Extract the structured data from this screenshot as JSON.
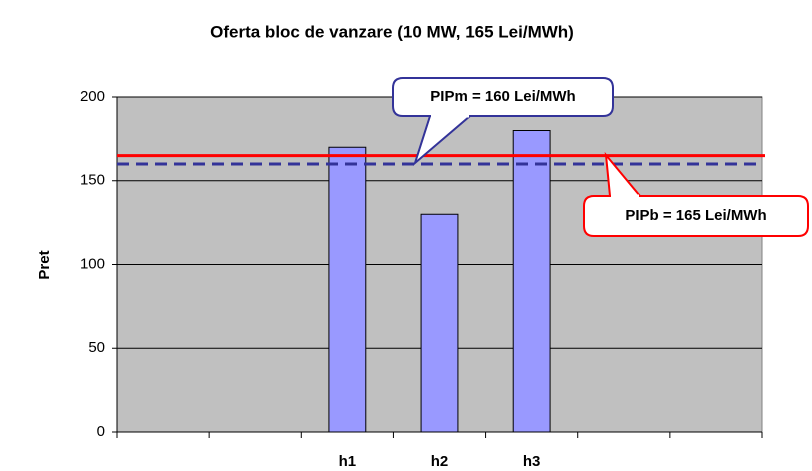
{
  "chart_data": {
    "type": "bar",
    "title": "Oferta bloc de vanzare (10 MW, 165 Lei/MWh)",
    "y_label": "Pret",
    "categories": [
      null,
      null,
      "h1",
      "h2",
      "h3",
      null,
      null
    ],
    "values": [
      null,
      null,
      170,
      130,
      180,
      null,
      null
    ],
    "color": "#9999ff",
    "ylim": [
      0,
      200
    ],
    "yticks": [
      0,
      50,
      100,
      150,
      200
    ],
    "grid": true,
    "reference_lines": [
      {
        "value": 165,
        "label": "PIPb = 165 Lei/MWh",
        "color": "#ff0000",
        "style": "solid"
      },
      {
        "value": 160,
        "label": "PIPm = 160 Lei/MWh",
        "color": "#333399",
        "style": "dashed"
      }
    ]
  }
}
